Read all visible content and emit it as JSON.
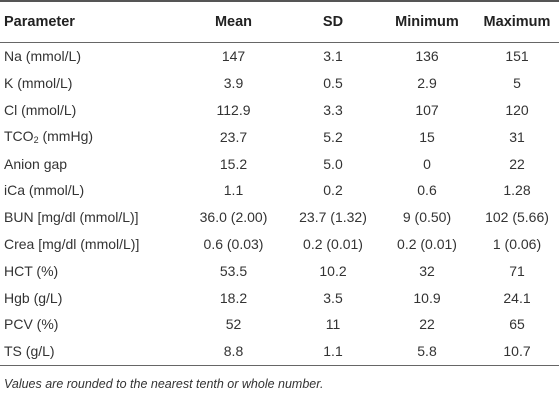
{
  "table": {
    "headers": {
      "parameter": "Parameter",
      "mean": "Mean",
      "sd": "SD",
      "minimum": "Minimum",
      "maximum": "Maximum"
    },
    "rows": [
      {
        "parameter": "Na (mmol/L)",
        "mean": "147",
        "sd": "3.1",
        "minimum": "136",
        "maximum": "151"
      },
      {
        "parameter": "K (mmol/L)",
        "mean": "3.9",
        "sd": "0.5",
        "minimum": "2.9",
        "maximum": "5"
      },
      {
        "parameter": "Cl (mmol/L)",
        "mean": "112.9",
        "sd": "3.3",
        "minimum": "107",
        "maximum": "120"
      },
      {
        "parameter_prefix": "TCO",
        "parameter_sub": "2",
        "parameter_suffix": " (mmHg)",
        "mean": "23.7",
        "sd": "5.2",
        "minimum": "15",
        "maximum": "31"
      },
      {
        "parameter": "Anion gap",
        "mean": "15.2",
        "sd": "5.0",
        "minimum": "0",
        "maximum": "22"
      },
      {
        "parameter": "iCa (mmol/L)",
        "mean": "1.1",
        "sd": "0.2",
        "minimum": "0.6",
        "maximum": "1.28"
      },
      {
        "parameter": "BUN [mg/dl (mmol/L)]",
        "mean": "36.0 (2.00)",
        "sd": "23.7 (1.32)",
        "minimum": "9 (0.50)",
        "maximum": "102 (5.66)"
      },
      {
        "parameter": "Crea [mg/dl (mmol/L)]",
        "mean": "0.6 (0.03)",
        "sd": "0.2 (0.01)",
        "minimum": "0.2 (0.01)",
        "maximum": "1 (0.06)"
      },
      {
        "parameter": "HCT (%)",
        "mean": "53.5",
        "sd": "10.2",
        "minimum": "32",
        "maximum": "71"
      },
      {
        "parameter": "Hgb (g/L)",
        "mean": "18.2",
        "sd": "3.5",
        "minimum": "10.9",
        "maximum": "24.1"
      },
      {
        "parameter": "PCV (%)",
        "mean": "52",
        "sd": "11",
        "minimum": "22",
        "maximum": "65"
      },
      {
        "parameter": "TS (g/L)",
        "mean": "8.8",
        "sd": "1.1",
        "minimum": "5.8",
        "maximum": "10.7"
      }
    ]
  },
  "footnote": "Values are rounded to the nearest tenth or whole number."
}
